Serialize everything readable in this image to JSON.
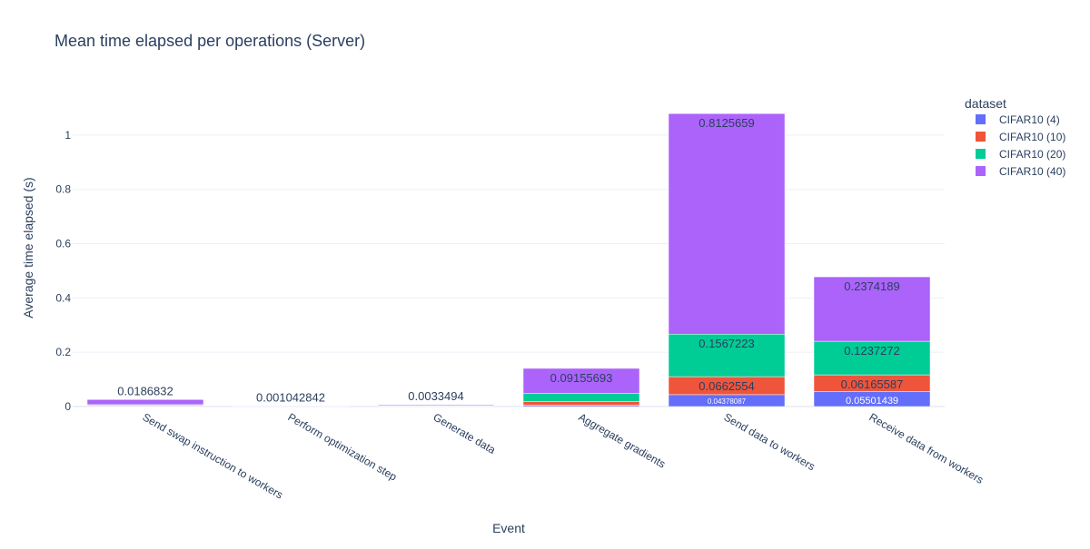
{
  "chart_data": {
    "type": "bar",
    "barmode": "stack",
    "title": "Mean time elapsed per operations (Server)",
    "xlabel": "Event",
    "ylabel": "Average time elapsed (s)",
    "ylim": [
      0,
      1.13
    ],
    "yticks": [
      0,
      0.2,
      0.4,
      0.6,
      0.8,
      1
    ],
    "ytick_labels": [
      "0",
      "0.2",
      "0.4",
      "0.6",
      "0.8",
      "1"
    ],
    "grid": true,
    "legend_title": "dataset",
    "legend_position": "top-right",
    "categories": [
      "Send swap instruction to workers",
      "Perform optimization step",
      "Generate data",
      "Aggregate gradients",
      "Send data to workers",
      "Receive data from workers"
    ],
    "series": [
      {
        "name": "CIFAR10 (4)",
        "color": "#636efa",
        "values": [
          0.002,
          0.0003,
          0.0009,
          0.005,
          0.04378087,
          0.05501439
        ],
        "labels": [
          "",
          "",
          "",
          "",
          "0.04378087",
          "0.05501439"
        ]
      },
      {
        "name": "CIFAR10 (10)",
        "color": "#ef553b",
        "values": [
          0.002,
          0.0003,
          0.0009,
          0.013,
          0.0662554,
          0.06165587
        ],
        "labels": [
          "",
          "",
          "",
          "",
          "0.0662554",
          "0.06165587"
        ]
      },
      {
        "name": "CIFAR10 (20)",
        "color": "#00cc96",
        "values": [
          0.003,
          0.0003,
          0.001,
          0.031,
          0.1567223,
          0.1237272
        ],
        "labels": [
          "",
          "",
          "",
          "",
          "0.1567223",
          "0.1237272"
        ]
      },
      {
        "name": "CIFAR10 (40)",
        "color": "#ab63fa",
        "values": [
          0.0186832,
          0.001042842,
          0.0033494,
          0.09155693,
          0.8125659,
          0.2374189
        ],
        "labels": [
          "0.0186832",
          "0.001042842",
          "0.0033494",
          "0.09155693",
          "0.8125659",
          "0.2374189"
        ]
      }
    ]
  }
}
